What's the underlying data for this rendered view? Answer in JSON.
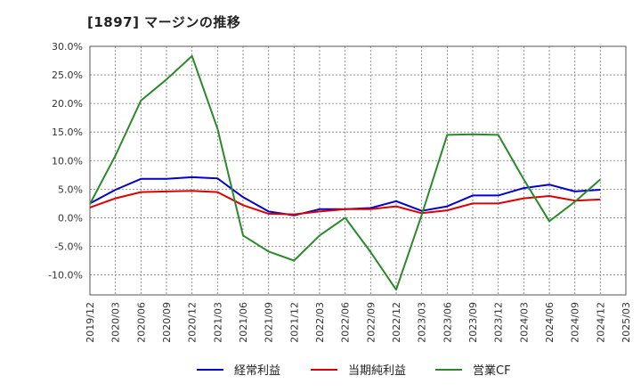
{
  "chart_data": {
    "type": "line",
    "title": "[1897]  マージンの推移",
    "xlabel": "",
    "ylabel": "",
    "x": [
      "2019/12",
      "2020/03",
      "2020/06",
      "2020/09",
      "2020/12",
      "2021/03",
      "2021/06",
      "2021/09",
      "2021/12",
      "2022/03",
      "2022/06",
      "2022/09",
      "2022/12",
      "2023/03",
      "2023/06",
      "2023/09",
      "2023/12",
      "2024/03",
      "2024/06",
      "2024/09",
      "2024/12",
      "2025/03"
    ],
    "ylim": [
      -13.5,
      30
    ],
    "y_ticks": [
      "30.0%",
      "25.0%",
      "20.0%",
      "15.0%",
      "10.0%",
      "5.0%",
      "0.0%",
      "-5.0%",
      "-10.0%"
    ],
    "grid": true,
    "legend_position": "bottom",
    "series": [
      {
        "name": "経常利益",
        "color": "#0000cc",
        "values": [
          2.5,
          4.9,
          6.8,
          6.8,
          7.1,
          6.9,
          3.6,
          1.1,
          0.4,
          1.5,
          1.5,
          1.7,
          2.9,
          1.2,
          2.0,
          3.9,
          3.9,
          5.2,
          5.8,
          4.6,
          4.9,
          null
        ]
      },
      {
        "name": "当期純利益",
        "color": "#dd0000",
        "values": [
          1.8,
          3.4,
          4.5,
          4.6,
          4.7,
          4.5,
          2.2,
          0.7,
          0.6,
          1.1,
          1.5,
          1.5,
          2.0,
          0.8,
          1.3,
          2.5,
          2.5,
          3.4,
          3.8,
          3.0,
          3.2,
          null
        ]
      },
      {
        "name": "営業CF",
        "color": "#2a8a2a",
        "values": [
          2.4,
          10.9,
          20.5,
          24.2,
          28.3,
          15.6,
          -3.1,
          -5.9,
          -7.5,
          -3.1,
          0.0,
          -6.0,
          -12.6,
          0.5,
          14.5,
          14.6,
          14.5,
          6.7,
          -0.6,
          2.8,
          6.7,
          null
        ]
      }
    ]
  }
}
